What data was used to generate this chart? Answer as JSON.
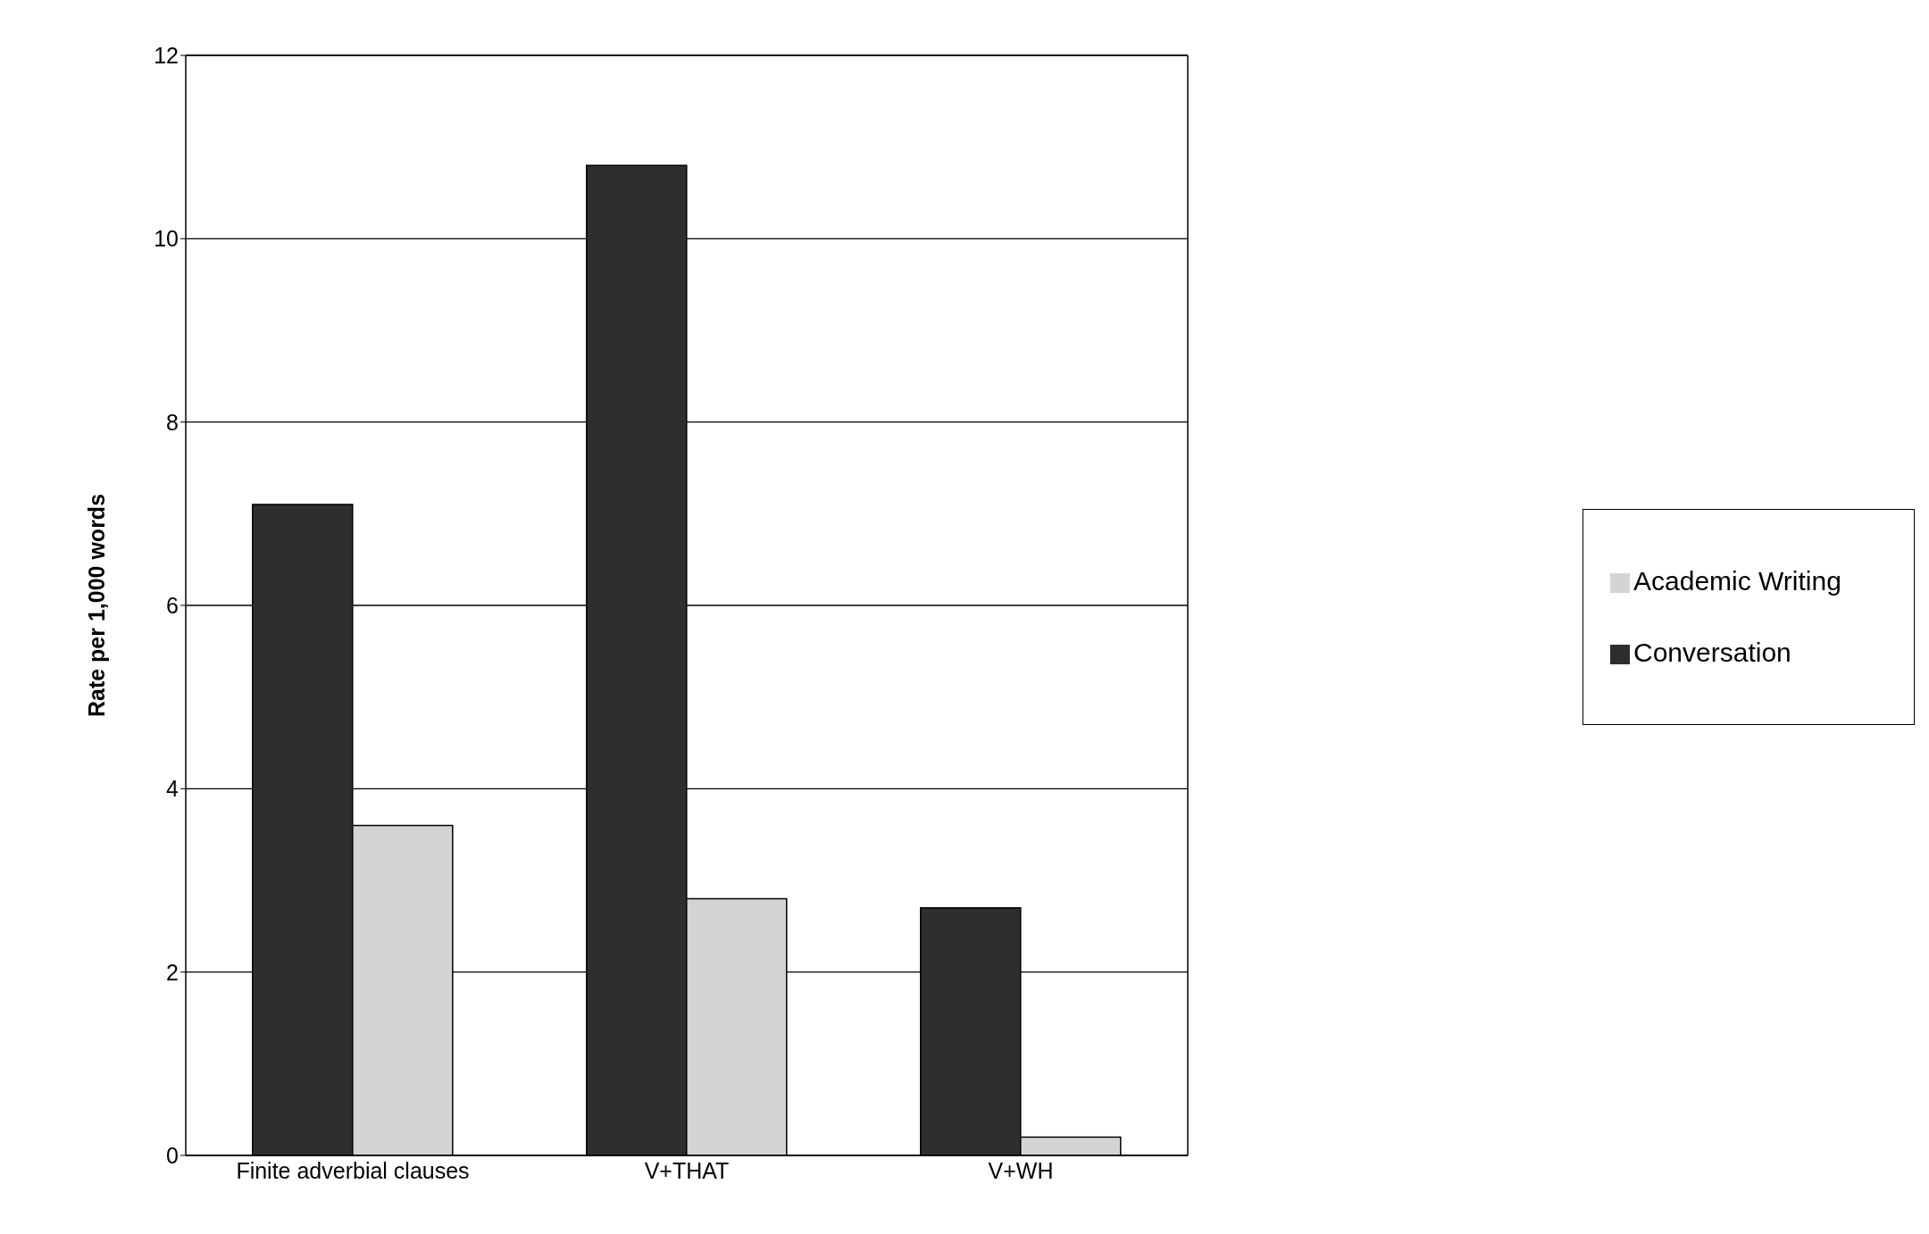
{
  "chart_data": {
    "type": "bar",
    "ylabel": "Rate per 1,000 words",
    "categories": [
      "Finite adverbial clauses",
      "V+THAT",
      "V+WH"
    ],
    "series": [
      {
        "name": "Conversation",
        "color": "#2e2e31",
        "values": [
          7.1,
          10.8,
          2.7
        ]
      },
      {
        "name": "Academic Writing",
        "color": "#d4d4d4",
        "values": [
          3.6,
          2.8,
          0.2
        ]
      }
    ],
    "ylim": [
      0,
      12
    ],
    "yticks": [
      0,
      2,
      4,
      6,
      8,
      10,
      12
    ],
    "grid": "y",
    "legend": "right"
  }
}
